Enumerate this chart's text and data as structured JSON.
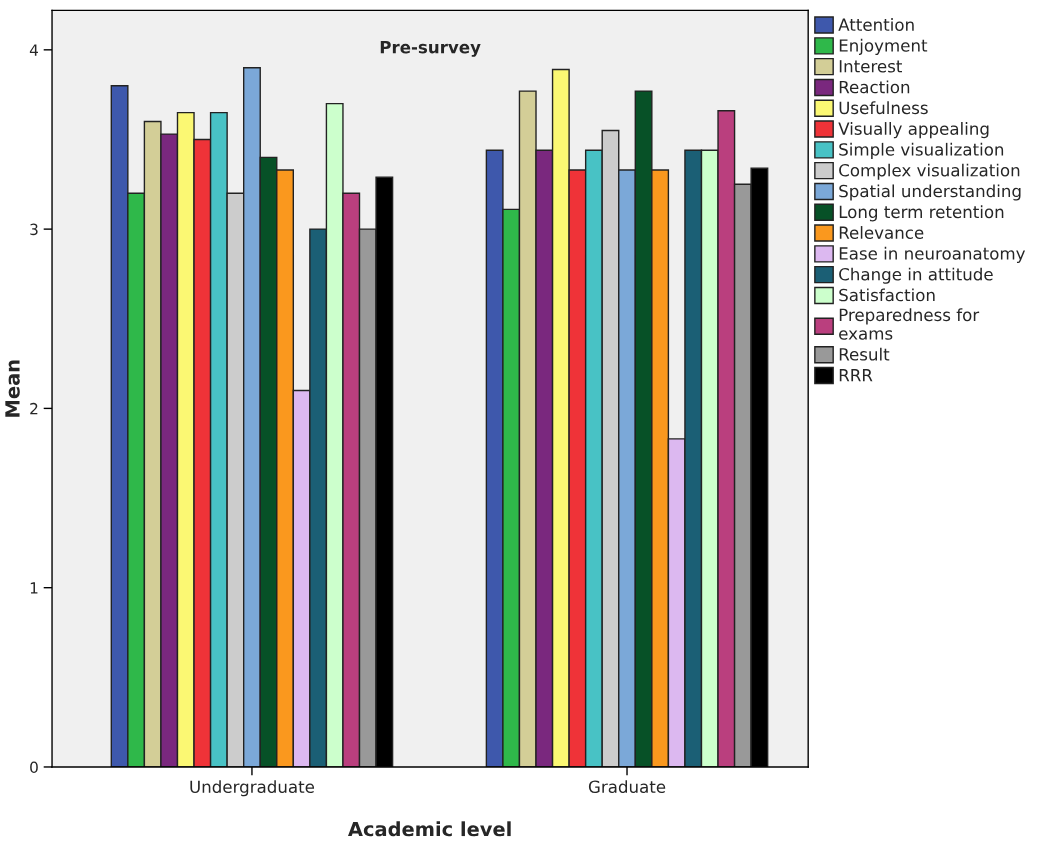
{
  "chart_data": {
    "type": "bar",
    "title": "Pre-survey",
    "xlabel": "Academic level",
    "ylabel": "Mean",
    "categories": [
      "Undergraduate",
      "Graduate"
    ],
    "series": [
      {
        "name": "Attention",
        "color": "#3e58ac",
        "values": [
          3.8,
          3.44
        ]
      },
      {
        "name": "Enjoyment",
        "color": "#2fb84a",
        "values": [
          3.2,
          3.11
        ]
      },
      {
        "name": "Interest",
        "color": "#d3ce97",
        "values": [
          3.6,
          3.77
        ]
      },
      {
        "name": "Reaction",
        "color": "#7a287e",
        "values": [
          3.53,
          3.44
        ]
      },
      {
        "name": "Usefulness",
        "color": "#fbf873",
        "values": [
          3.65,
          3.89
        ]
      },
      {
        "name": "Visually appealing",
        "color": "#ef3338",
        "values": [
          3.5,
          3.33
        ]
      },
      {
        "name": "Simple visualization",
        "color": "#48c2c5",
        "values": [
          3.65,
          3.44
        ]
      },
      {
        "name": "Complex visualization",
        "color": "#cccccc",
        "values": [
          3.2,
          3.55
        ]
      },
      {
        "name": "Spatial understanding",
        "color": "#7ba8d8",
        "values": [
          3.9,
          3.33
        ]
      },
      {
        "name": "Long term retention",
        "color": "#075127",
        "values": [
          3.4,
          3.77
        ]
      },
      {
        "name": "Relevance",
        "color": "#fa981e",
        "values": [
          3.33,
          3.33
        ]
      },
      {
        "name": "Ease in neuroanatomy",
        "color": "#dcb8f0",
        "values": [
          2.1,
          1.83
        ]
      },
      {
        "name": "Change in attitude",
        "color": "#1b5f75",
        "values": [
          3.0,
          3.44
        ]
      },
      {
        "name": "Satisfaction",
        "color": "#ccffcc",
        "values": [
          3.7,
          3.44
        ]
      },
      {
        "name": "Preparedness for\nexams",
        "color": "#ba3f7e",
        "values": [
          3.2,
          3.66
        ]
      },
      {
        "name": "Result",
        "color": "#999999",
        "values": [
          3.0,
          3.25
        ]
      },
      {
        "name": "RRR",
        "color": "#000000",
        "values": [
          3.29,
          3.34
        ]
      }
    ],
    "ylim": [
      0,
      4.22
    ],
    "yticks": [
      0,
      1,
      2,
      3,
      4
    ],
    "grid": false,
    "legend": "right"
  }
}
